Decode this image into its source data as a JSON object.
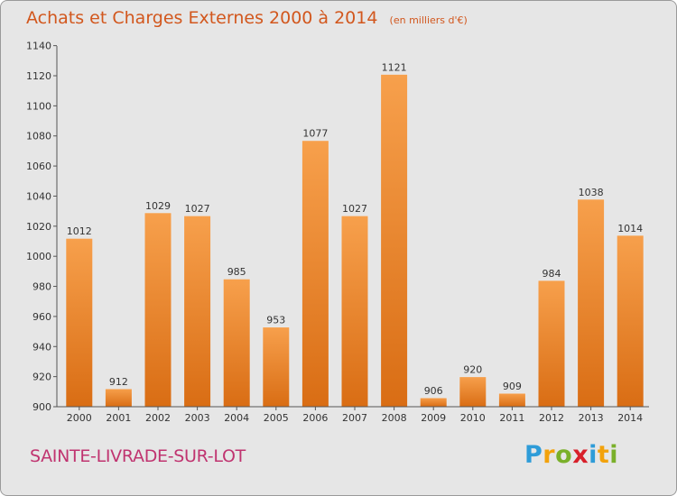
{
  "chart_data": {
    "type": "bar",
    "title": "Achats et Charges Externes 2000 à 2014",
    "subtitle": "(en milliers d'€)",
    "categories": [
      "2000",
      "2001",
      "2002",
      "2003",
      "2004",
      "2005",
      "2006",
      "2007",
      "2008",
      "2009",
      "2010",
      "2011",
      "2012",
      "2013",
      "2014"
    ],
    "values": [
      1012,
      912,
      1029,
      1027,
      985,
      953,
      1077,
      1027,
      1121,
      906,
      920,
      909,
      984,
      1038,
      1014
    ],
    "value_labels": [
      "1012",
      "912",
      "1029",
      "1027",
      "985",
      "953",
      "1077",
      "1027",
      "1121",
      "906",
      "920",
      "909",
      "984",
      "1038",
      "1014"
    ],
    "yticks": [
      "900",
      "920",
      "940",
      "960",
      "980",
      "1000",
      "1020",
      "1040",
      "1060",
      "1080",
      "1100",
      "1120",
      "1140"
    ],
    "ylim": [
      900,
      1145
    ],
    "grid": false,
    "bar_color": "#f08a2c",
    "bar_color_dark": "#d96d14"
  },
  "footer": {
    "commune": "SAINTE-LIVRADE-SUR-LOT"
  },
  "brand": {
    "letters": [
      "P",
      "r",
      "o",
      "x",
      "i",
      "t",
      "i"
    ],
    "colors": [
      "#2e9cd8",
      "#f2a20c",
      "#7ab02a",
      "#d8202a",
      "#2e9cd8",
      "#f2a20c",
      "#7ab02a"
    ]
  }
}
